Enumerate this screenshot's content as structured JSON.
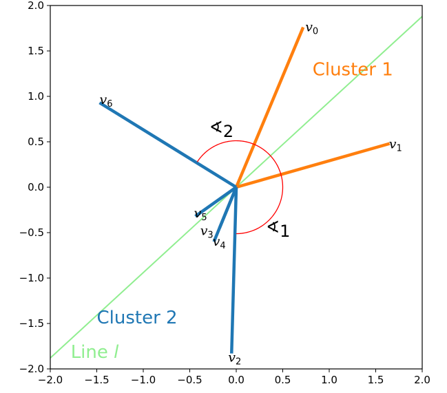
{
  "chart_data": {
    "type": "line",
    "title": "",
    "xlabel": "",
    "ylabel": "",
    "xlim": [
      -2.0,
      2.0
    ],
    "ylim": [
      -2.0,
      2.0
    ],
    "grid": false,
    "xticks": [
      -2.0,
      -1.5,
      -1.0,
      -0.5,
      0.0,
      0.5,
      1.0,
      1.5,
      2.0
    ],
    "yticks": [
      -2.0,
      -1.5,
      -1.0,
      -0.5,
      0.0,
      0.5,
      1.0,
      1.5,
      2.0
    ],
    "xtick_labels": [
      "−2.0",
      "−1.5",
      "−1.0",
      "−0.5",
      "0.0",
      "0.5",
      "1.0",
      "1.5",
      "2.0"
    ],
    "ytick_labels": [
      "−2.0",
      "−1.5",
      "−1.0",
      "−0.5",
      "0.0",
      "0.5",
      "1.0",
      "1.5",
      "2.0"
    ],
    "line_l": {
      "label": "Line",
      "label_var": "l",
      "color": "#90ee90",
      "x": [
        -2.0,
        2.0
      ],
      "y": [
        -1.88,
        1.88
      ]
    },
    "clusters": [
      {
        "name": "Cluster 1",
        "color": "#ff7f0e",
        "vectors": [
          {
            "label": "v",
            "sub": "0",
            "x": 0.72,
            "y": 1.76
          },
          {
            "label": "v",
            "sub": "1",
            "x": 1.65,
            "y": 0.48
          }
        ]
      },
      {
        "name": "Cluster 2",
        "color": "#1f77b4",
        "vectors": [
          {
            "label": "v",
            "sub": "2",
            "x": -0.05,
            "y": -1.83
          },
          {
            "label": "v",
            "sub": "3",
            "x": -0.18,
            "y": -0.45
          },
          {
            "label": "v",
            "sub": "4",
            "x": -0.24,
            "y": -0.6
          },
          {
            "label": "v",
            "sub": "5",
            "x": -0.44,
            "y": -0.32
          },
          {
            "label": "v",
            "sub": "6",
            "x": -1.47,
            "y": 0.93
          }
        ]
      }
    ],
    "angles": [
      {
        "label": "∢",
        "sub": "1",
        "radius": 0.5,
        "from_deg": -90,
        "to_deg": 43,
        "color": "#ff0000"
      },
      {
        "label": "∢",
        "sub": "2",
        "radius": 0.5,
        "from_deg": 43,
        "to_deg": 147,
        "color": "#ff0000"
      }
    ]
  }
}
